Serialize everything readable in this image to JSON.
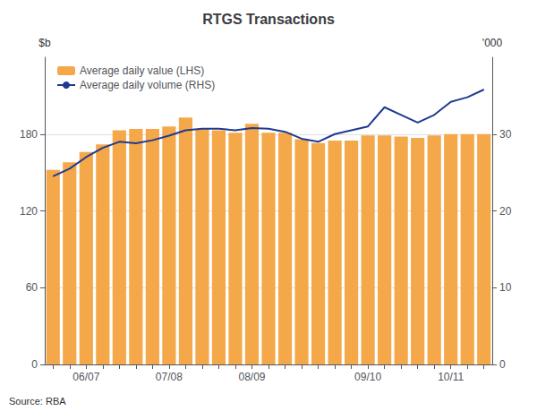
{
  "chart_data": {
    "type": "bar",
    "title": "RTGS Transactions",
    "source": "Source: RBA",
    "categories": [
      null,
      null,
      "06/07",
      null,
      null,
      null,
      null,
      "07/08",
      null,
      null,
      null,
      null,
      "08/09",
      null,
      null,
      null,
      null,
      null,
      null,
      "09/10",
      null,
      null,
      null,
      null,
      "10/11",
      null,
      null
    ],
    "series": [
      {
        "name": "Average daily value (LHS)",
        "type": "bar",
        "color": "#F5A84A",
        "values": [
          152,
          158,
          166,
          172,
          183,
          184,
          184,
          186,
          193,
          184,
          183,
          181,
          188,
          181,
          181,
          176,
          173,
          175,
          175,
          179,
          179,
          178,
          177,
          179,
          180,
          180,
          180
        ]
      },
      {
        "name": "Average daily volume (RHS)",
        "type": "line",
        "color": "#1F3A8F",
        "axis": "y2",
        "values": [
          24.5,
          25.5,
          27.0,
          28.2,
          29.0,
          28.8,
          29.2,
          29.8,
          30.5,
          30.7,
          30.7,
          30.5,
          30.8,
          30.7,
          30.3,
          29.4,
          29.0,
          30.0,
          30.5,
          31.0,
          33.5,
          32.5,
          31.5,
          32.5,
          34.2,
          34.8,
          35.8
        ]
      }
    ],
    "ylabel": "$b",
    "y2label": "'000",
    "ylim": [
      0,
      240
    ],
    "yticks": [
      0,
      60,
      120,
      180
    ],
    "y2lim": [
      0,
      40
    ],
    "y2ticks": [
      0,
      10,
      20,
      30
    ],
    "grid": true,
    "legend": "upper left"
  }
}
